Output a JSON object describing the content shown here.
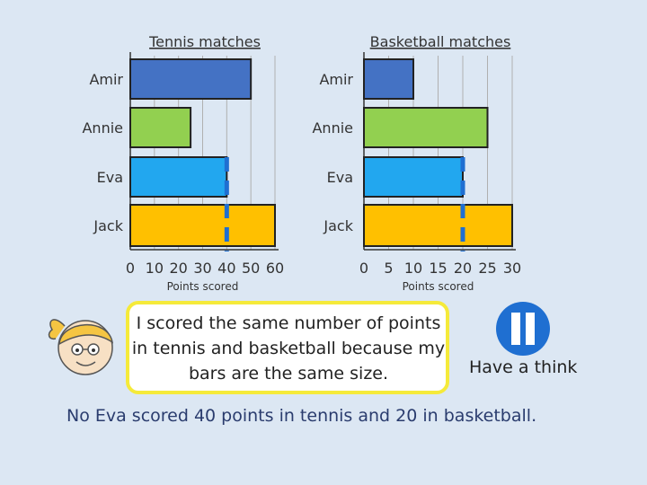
{
  "chart_data": [
    {
      "type": "bar",
      "orientation": "horizontal",
      "title": "Tennis matches",
      "xlabel": "Points scored",
      "ylabel": "",
      "categories": [
        "Amir",
        "Annie",
        "Eva",
        "Jack"
      ],
      "values": [
        50,
        25,
        40,
        60
      ],
      "xlim": [
        0,
        60
      ],
      "xticks": [
        "0",
        "10",
        "20",
        "30",
        "40",
        "50",
        "60"
      ],
      "grid": true,
      "colors": [
        "#4472c4",
        "#92d050",
        "#22a7ef",
        "#ffc000"
      ],
      "highlight_value": 40
    },
    {
      "type": "bar",
      "orientation": "horizontal",
      "title": "Basketball matches",
      "xlabel": "Points scored",
      "ylabel": "",
      "categories": [
        "Amir",
        "Annie",
        "Eva",
        "Jack"
      ],
      "values": [
        10,
        25,
        20,
        30
      ],
      "xlim": [
        0,
        30
      ],
      "xticks": [
        "0",
        "5",
        "10",
        "15",
        "20",
        "25",
        "30"
      ],
      "grid": true,
      "colors": [
        "#4472c4",
        "#92d050",
        "#22a7ef",
        "#ffc000"
      ],
      "highlight_value": 20
    }
  ],
  "bubble_text": "I scored the same number of points in tennis and basketball because my bars are the same size.",
  "think_label": "Have a think",
  "answer_text": "No Eva scored 40 points in tennis and 20 in basketball.",
  "icons": {
    "pause": "pause-icon",
    "character": "girl-character-icon"
  },
  "accent_color": "#1f6fd1"
}
